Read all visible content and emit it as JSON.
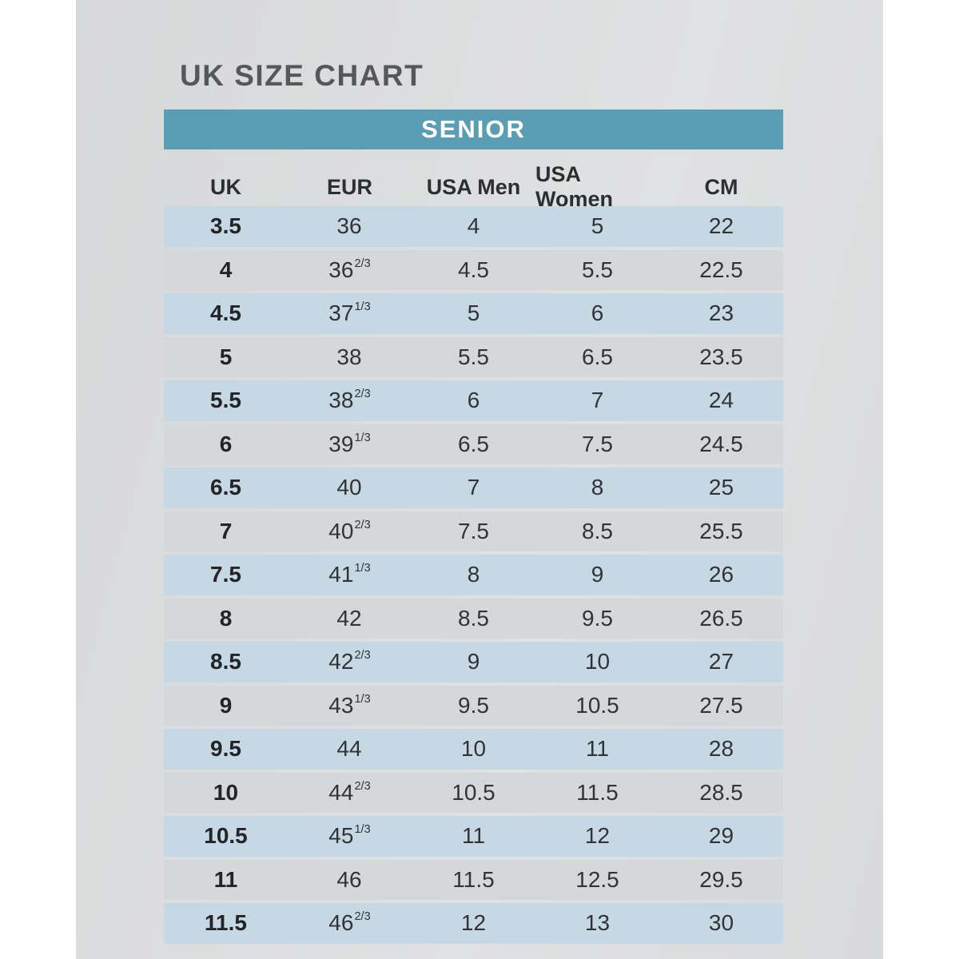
{
  "page": {
    "title": "UK SIZE CHART",
    "band_label": "SENIOR"
  },
  "colors": {
    "band_bg": "#5b9db2",
    "row_blue": "#c5d8e4",
    "row_gray": "#d6d7d8",
    "panel_bg": "#dbdcdd",
    "title_text": "#56575b",
    "header_text": "#2d2e30",
    "cell_text": "#323336",
    "band_text": "#ffffff"
  },
  "table": {
    "columns": [
      "UK",
      "EUR",
      "USA Men",
      "USA Women",
      "CM"
    ],
    "rows": [
      {
        "uk": "3.5",
        "eur": "36",
        "eur_sup": "",
        "usa_men": "4",
        "usa_women": "5",
        "cm": "22"
      },
      {
        "uk": "4",
        "eur": "36",
        "eur_sup": "2/3",
        "usa_men": "4.5",
        "usa_women": "5.5",
        "cm": "22.5"
      },
      {
        "uk": "4.5",
        "eur": "37",
        "eur_sup": "1/3",
        "usa_men": "5",
        "usa_women": "6",
        "cm": "23"
      },
      {
        "uk": "5",
        "eur": "38",
        "eur_sup": "",
        "usa_men": "5.5",
        "usa_women": "6.5",
        "cm": "23.5"
      },
      {
        "uk": "5.5",
        "eur": "38",
        "eur_sup": "2/3",
        "usa_men": "6",
        "usa_women": "7",
        "cm": "24"
      },
      {
        "uk": "6",
        "eur": "39",
        "eur_sup": "1/3",
        "usa_men": "6.5",
        "usa_women": "7.5",
        "cm": "24.5"
      },
      {
        "uk": "6.5",
        "eur": "40",
        "eur_sup": "",
        "usa_men": "7",
        "usa_women": "8",
        "cm": "25"
      },
      {
        "uk": "7",
        "eur": "40",
        "eur_sup": "2/3",
        "usa_men": "7.5",
        "usa_women": "8.5",
        "cm": "25.5"
      },
      {
        "uk": "7.5",
        "eur": "41",
        "eur_sup": "1/3",
        "usa_men": "8",
        "usa_women": "9",
        "cm": "26"
      },
      {
        "uk": "8",
        "eur": "42",
        "eur_sup": "",
        "usa_men": "8.5",
        "usa_women": "9.5",
        "cm": "26.5"
      },
      {
        "uk": "8.5",
        "eur": "42",
        "eur_sup": "2/3",
        "usa_men": "9",
        "usa_women": "10",
        "cm": "27"
      },
      {
        "uk": "9",
        "eur": "43",
        "eur_sup": "1/3",
        "usa_men": "9.5",
        "usa_women": "10.5",
        "cm": "27.5"
      },
      {
        "uk": "9.5",
        "eur": "44",
        "eur_sup": "",
        "usa_men": "10",
        "usa_women": "11",
        "cm": "28"
      },
      {
        "uk": "10",
        "eur": "44",
        "eur_sup": "2/3",
        "usa_men": "10.5",
        "usa_women": "11.5",
        "cm": "28.5"
      },
      {
        "uk": "10.5",
        "eur": "45",
        "eur_sup": "1/3",
        "usa_men": "11",
        "usa_women": "12",
        "cm": "29"
      },
      {
        "uk": "11",
        "eur": "46",
        "eur_sup": "",
        "usa_men": "11.5",
        "usa_women": "12.5",
        "cm": "29.5"
      },
      {
        "uk": "11.5",
        "eur": "46",
        "eur_sup": "2/3",
        "usa_men": "12",
        "usa_women": "13",
        "cm": "30"
      }
    ]
  }
}
